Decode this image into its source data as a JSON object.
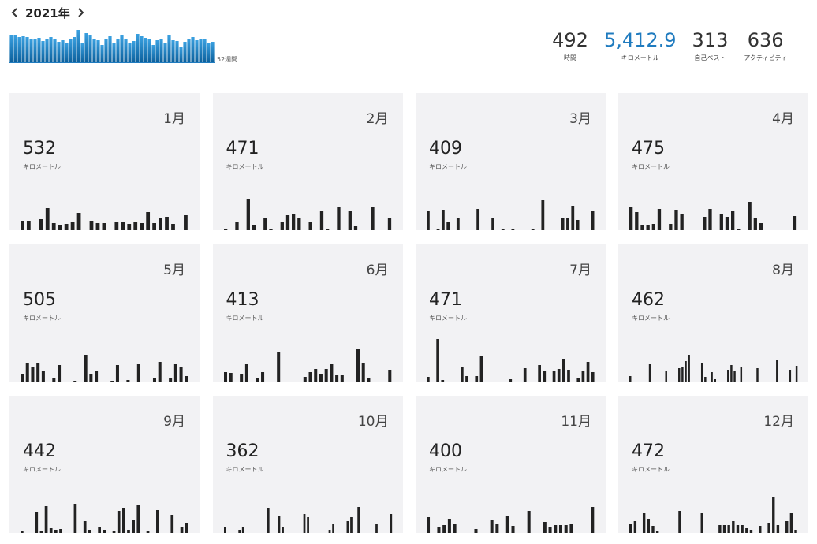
{
  "header": {
    "year_label": "2021年",
    "prev_icon": "chevron-left-icon",
    "next_icon": "chevron-right-icon",
    "weeks_label": "52週間"
  },
  "weekly_sparkline": [
    36,
    35,
    33,
    34,
    33,
    31,
    30,
    32,
    28,
    31,
    33,
    30,
    27,
    29,
    26,
    31,
    33,
    42,
    25,
    38,
    36,
    31,
    29,
    23,
    31,
    34,
    25,
    30,
    35,
    30,
    26,
    28,
    37,
    34,
    32,
    30,
    23,
    29,
    31,
    26,
    35,
    29,
    28,
    20,
    27,
    31,
    33,
    29,
    31,
    30,
    25,
    27
  ],
  "summary": [
    {
      "value": "492",
      "label": "時間",
      "accent": false
    },
    {
      "value": "5,412.9",
      "label": "キロメートル",
      "accent": true
    },
    {
      "value": "313",
      "label": "自己ベスト",
      "accent": false
    },
    {
      "value": "636",
      "label": "アクティビティ",
      "accent": false
    }
  ],
  "accent_color": "#1f7bbf",
  "bar_color": "#222222",
  "months": [
    {
      "month": "1月",
      "km": "532",
      "unit": "キロメートル",
      "bars": [
        14,
        14,
        0,
        16,
        30,
        11,
        8,
        10,
        13,
        24,
        0,
        14,
        11,
        11,
        0,
        13,
        12,
        10,
        13,
        11,
        25,
        11,
        18,
        19,
        10,
        0,
        21
      ]
    },
    {
      "month": "2月",
      "km": "471",
      "unit": "キロメートル",
      "bars": [
        3,
        0,
        13,
        0,
        42,
        9,
        0,
        18,
        3,
        0,
        13,
        21,
        22,
        18,
        0,
        13,
        0,
        27,
        4,
        0,
        32,
        0,
        26,
        7,
        0,
        0,
        31,
        0,
        0,
        18
      ]
    },
    {
      "month": "3月",
      "km": "409",
      "unit": "キロメートル",
      "bars": [
        26,
        0,
        4,
        28,
        13,
        0,
        18,
        0,
        0,
        0,
        29,
        0,
        0,
        17,
        0,
        4,
        0,
        4,
        0,
        0,
        0,
        3,
        0,
        40,
        2,
        0,
        0,
        17,
        17,
        33,
        15,
        0,
        0,
        26
      ]
    },
    {
      "month": "4月",
      "km": "475",
      "unit": "キロメートル",
      "bars": [
        31,
        25,
        8,
        8,
        10,
        29,
        0,
        10,
        28,
        22,
        0,
        0,
        0,
        19,
        29,
        0,
        23,
        19,
        26,
        4,
        0,
        38,
        17,
        11,
        0,
        0,
        0,
        0,
        0,
        20
      ]
    },
    {
      "month": "5月",
      "km": "505",
      "unit": "キロメートル",
      "bars": [
        12,
        26,
        20,
        26,
        16,
        0,
        6,
        23,
        0,
        0,
        3,
        0,
        36,
        11,
        16,
        0,
        0,
        3,
        23,
        0,
        4,
        0,
        24,
        0,
        0,
        6,
        27,
        0,
        6,
        24,
        21,
        9
      ]
    },
    {
      "month": "6月",
      "km": "413",
      "unit": "キロメートル",
      "bars": [
        14,
        13,
        0,
        12,
        24,
        0,
        6,
        14,
        0,
        0,
        39,
        0,
        0,
        0,
        0,
        8,
        14,
        18,
        12,
        18,
        24,
        10,
        10,
        0,
        0,
        43,
        26,
        7,
        0,
        0,
        2,
        17
      ]
    },
    {
      "month": "7月",
      "km": "471",
      "unit": "キロメートル",
      "bars": [
        8,
        0,
        68,
        4,
        0,
        0,
        0,
        21,
        9,
        0,
        9,
        34,
        0,
        0,
        0,
        0,
        0,
        5,
        0,
        0,
        19,
        0,
        0,
        23,
        16,
        0,
        15,
        18,
        31,
        17,
        0,
        6,
        16,
        27,
        14
      ]
    },
    {
      "month": "8月",
      "km": "462",
      "unit": "キロメートル",
      "bars": [
        9,
        0,
        0,
        0,
        0,
        0,
        24,
        0,
        0,
        0,
        0,
        16,
        0,
        0,
        0,
        19,
        20,
        28,
        36,
        0,
        0,
        0,
        26,
        8,
        0,
        14,
        5,
        0,
        0,
        0,
        17,
        23,
        16,
        0,
        21,
        0,
        0,
        0,
        0,
        19,
        0,
        0,
        0,
        0,
        0,
        29,
        0,
        0,
        0,
        17,
        0,
        22
      ]
    },
    {
      "month": "9月",
      "km": "442",
      "unit": "キロメートル",
      "bars": [
        4,
        0,
        0,
        28,
        5,
        36,
        8,
        6,
        7,
        0,
        0,
        39,
        0,
        17,
        6,
        0,
        10,
        6,
        0,
        4,
        30,
        34,
        6,
        18,
        37,
        0,
        4,
        0,
        31,
        0,
        0,
        25,
        0,
        10,
        15
      ]
    },
    {
      "month": "10月",
      "km": "362",
      "unit": "キロメートル",
      "bars": [
        9,
        0,
        0,
        0,
        6,
        9,
        0,
        0,
        0,
        0,
        0,
        0,
        34,
        0,
        0,
        24,
        9,
        0,
        0,
        0,
        0,
        0,
        26,
        22,
        0,
        0,
        0,
        0,
        0,
        6,
        14,
        0,
        0,
        0,
        17,
        22,
        0,
        35,
        0,
        0,
        0,
        0,
        14,
        0,
        0,
        0,
        26
      ]
    },
    {
      "month": "11月",
      "km": "400",
      "unit": "キロメートル",
      "bars": [
        22,
        0,
        9,
        12,
        20,
        13,
        0,
        0,
        0,
        7,
        0,
        0,
        18,
        13,
        0,
        23,
        11,
        0,
        0,
        30,
        0,
        0,
        16,
        9,
        12,
        12,
        12,
        13,
        0,
        0,
        0,
        35
      ]
    },
    {
      "month": "12月",
      "km": "472",
      "unit": "キロメートル",
      "bars": [
        13,
        17,
        0,
        27,
        20,
        11,
        4,
        0,
        0,
        0,
        0,
        30,
        0,
        0,
        0,
        0,
        27,
        0,
        0,
        0,
        12,
        12,
        12,
        17,
        12,
        12,
        8,
        6,
        0,
        11,
        0,
        15,
        47,
        12,
        0,
        17,
        27,
        6
      ]
    }
  ]
}
